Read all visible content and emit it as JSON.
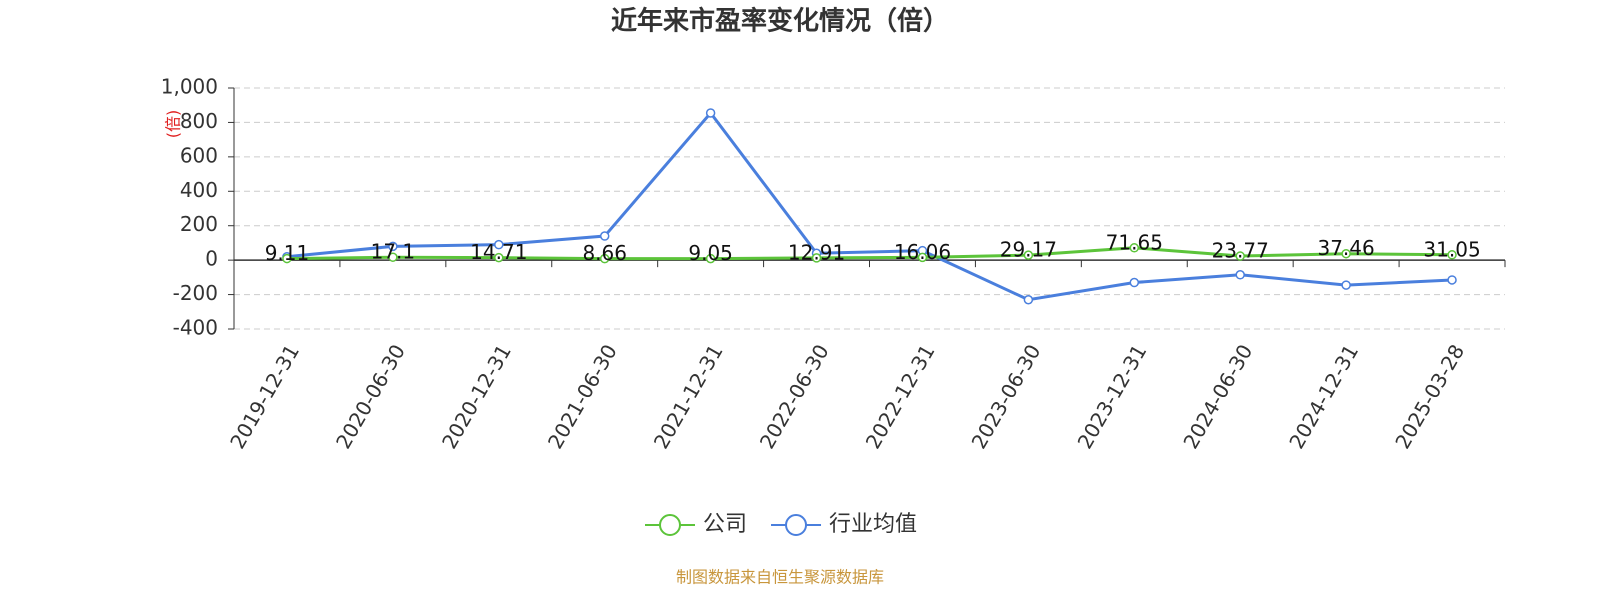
{
  "chart_data": {
    "type": "line",
    "title": "近年来市盈率变化情况（倍）",
    "ylabel": "(倍)",
    "categories": [
      "2019-12-31",
      "2020-06-30",
      "2020-12-31",
      "2021-06-30",
      "2021-12-31",
      "2022-06-30",
      "2022-12-31",
      "2023-06-30",
      "2023-12-31",
      "2024-06-30",
      "2024-12-31",
      "2025-03-28"
    ],
    "series": [
      {
        "name": "公司",
        "color": "#5cc43a",
        "values": [
          9.11,
          17.1,
          14.71,
          8.66,
          9.05,
          12.91,
          16.06,
          29.17,
          71.65,
          23.77,
          37.46,
          31.05
        ],
        "show_labels": true
      },
      {
        "name": "行业均值",
        "color": "#4a7fdd",
        "values": [
          20,
          80,
          90,
          140,
          855,
          40,
          55,
          -230,
          -130,
          -85,
          -145,
          -115
        ],
        "show_labels": false
      }
    ],
    "ylim": [
      -400,
      1000
    ],
    "yticks": [
      -400,
      -200,
      0,
      200,
      400,
      600,
      800,
      {
        "value": 1000,
        "label": "1,000"
      }
    ],
    "grid": true,
    "source": "制图数据来自恒生聚源数据库"
  }
}
